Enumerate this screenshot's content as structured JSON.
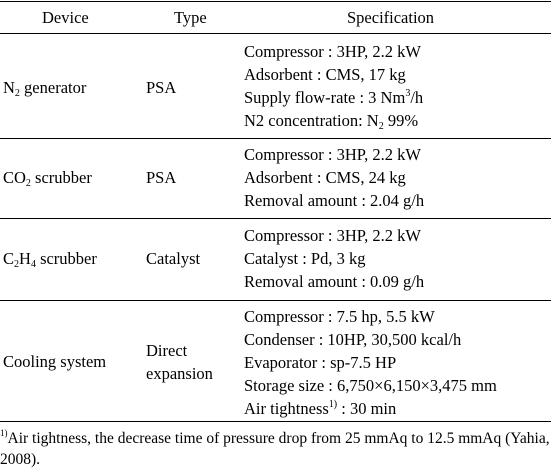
{
  "table": {
    "headers": {
      "device": "Device",
      "type": "Type",
      "specification": "Specification"
    },
    "rows": [
      {
        "device_main": "N",
        "device_sub": "2",
        "device_tail": " generator",
        "type_line1": "PSA",
        "type_line2": "",
        "specs": [
          "Compressor : 3HP, 2.2 kW",
          "Adsorbent : CMS, 17 kg",
          "Supply flow-rate : 3 Nm",
          "N2 concentration: N"
        ],
        "spec3_sup": "3",
        "spec3_tail": "/h",
        "spec4_sub": "2",
        "spec4_tail": " 99%"
      },
      {
        "device_main": "CO",
        "device_sub": "2",
        "device_tail": " scrubber",
        "type_line1": "PSA",
        "type_line2": "",
        "specs": [
          "Compressor : 3HP, 2.2 kW",
          "Adsorbent : CMS, 24 kg",
          "Removal amount : 2.04 g/h"
        ]
      },
      {
        "device_main": "C",
        "device_sub": "2",
        "device_mid": "H",
        "device_sub2": "4",
        "device_tail": " scrubber",
        "type_line1": "Catalyst",
        "type_line2": "",
        "specs": [
          "Compressor : 3HP, 2.2 kW",
          "Catalyst : Pd, 3 kg",
          "Removal amount : 0.09 g/h"
        ]
      },
      {
        "device_main": "Cooling system",
        "type_line1": "Direct",
        "type_line2": "expansion",
        "specs": [
          "Compressor : 7.5 hp, 5.5 kW",
          "Condenser : 10HP, 30,500 kcal/h",
          "Evaporator : sp-7.5 HP",
          "Storage size : 6,750×6,150×3,475 mm",
          "Air tightness"
        ],
        "spec5_sup": "1)",
        "spec5_tail": " : 30 min"
      }
    ]
  },
  "footnote": {
    "marker": "1)",
    "text": "Air tightness, the decrease time of pressure drop from 25 mmAq to 12.5 mmAq (Yahia, 2008)."
  }
}
